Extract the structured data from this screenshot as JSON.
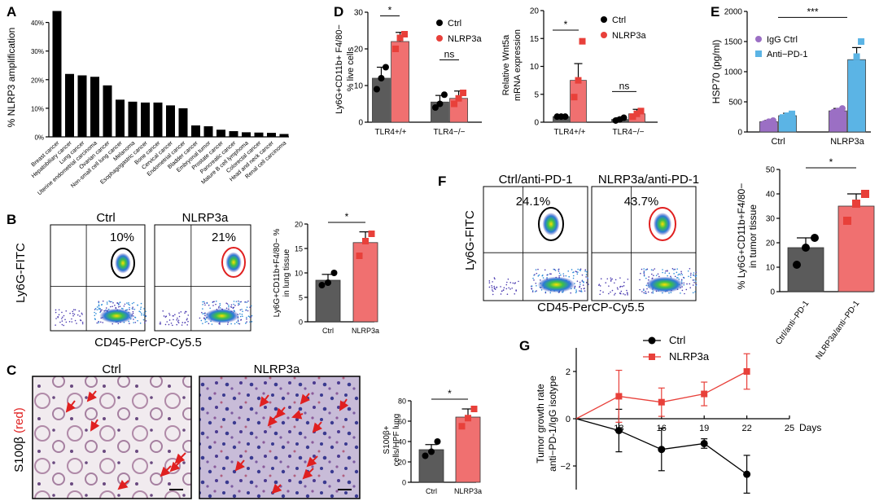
{
  "colors": {
    "ctrl_bar": "#5b5b5b",
    "nlrp3_bar": "#f07070",
    "nlrp3_pt": "#e8403a",
    "igg": "#9b6fc4",
    "antipd1": "#5bb4e5",
    "black": "#000000"
  },
  "panels": {
    "A": "A",
    "B": "B",
    "C": "C",
    "D": "D",
    "E": "E",
    "F": "F",
    "G": "G"
  },
  "chart_data": [
    {
      "id": "A",
      "type": "bar",
      "ylabel": "% NLRP3 amplification",
      "yticks": [
        "0%",
        "10%",
        "20%",
        "30%",
        "40%"
      ],
      "ylim": [
        0,
        45
      ],
      "categories": [
        "Breast cancer",
        "Hepatobiliary cancer",
        "Lung cancer",
        "Uterine endometrial carcinoma",
        "Ovarian cancer",
        "Non-small cell lung cancer",
        "Melanoma",
        "Esophagogastric cancer",
        "Bone cancer",
        "Cervical cancer",
        "Endometrial cancer",
        "Bladder cancer",
        "Embryonal tumor",
        "Prostate cancer",
        "Pancreatic cancer",
        "Mature B cell lymphoma",
        "Colorectal cancer",
        "Head and neck cancer",
        "Renal cell carcinoma"
      ],
      "values": [
        44,
        22,
        21.5,
        21,
        18,
        13,
        12.3,
        12,
        12,
        11,
        10,
        4,
        3.7,
        2.5,
        2,
        1.6,
        1.5,
        1.4,
        1
      ]
    },
    {
      "id": "B",
      "type": "bar",
      "ylabel": "Ly6G+CD11b+F4/80− % in lung tissue",
      "categories": [
        "Ctrl",
        "NLRP3a"
      ],
      "values": [
        8.5,
        16.2
      ],
      "errors": [
        1.2,
        2.2
      ],
      "points": [
        [
          7.5,
          8,
          10
        ],
        [
          13.5,
          16.5,
          18
        ]
      ],
      "ylim": [
        0,
        20
      ],
      "yticks": [
        "0",
        "5",
        "10",
        "15",
        "20"
      ],
      "significance": "*"
    },
    {
      "id": "C",
      "type": "bar",
      "ylabel": "S100β+ cells/HPF lung",
      "categories": [
        "Ctrl",
        "NLRP3a"
      ],
      "values": [
        32,
        64
      ],
      "errors": [
        5,
        8
      ],
      "points": [
        [
          26,
          30,
          40
        ],
        [
          55,
          63,
          72
        ]
      ],
      "ylim": [
        0,
        80
      ],
      "yticks": [
        "0",
        "20",
        "40",
        "60",
        "80"
      ],
      "significance": "*"
    },
    {
      "id": "D1",
      "type": "bar",
      "ylabel": "Ly6G+CD11b+F4/80− % live cells",
      "categories": [
        "TLR4+/+",
        "TLR4−/−"
      ],
      "series": [
        {
          "name": "Ctrl",
          "values": [
            12,
            5.5
          ],
          "errors": [
            3,
            1.8
          ],
          "points": [
            [
              9,
              12,
              15
            ],
            [
              4,
              5,
              7.5
            ]
          ]
        },
        {
          "name": "NLRP3a",
          "values": [
            22,
            6.5
          ],
          "errors": [
            2.5,
            2
          ],
          "points": [
            [
              20,
              23,
              24
            ],
            [
              5,
              6.5,
              8
            ]
          ]
        }
      ],
      "ylim": [
        0,
        30
      ],
      "yticks": [
        "0",
        "10",
        "20",
        "30"
      ],
      "significance": [
        "*",
        "ns"
      ]
    },
    {
      "id": "D2",
      "type": "bar",
      "ylabel": "Relative Wnt5a mRNA expression",
      "categories": [
        "TLR4+/+",
        "TLR4−/−"
      ],
      "series": [
        {
          "name": "Ctrl",
          "values": [
            1,
            0.5
          ],
          "errors": [
            0.1,
            0.3
          ],
          "points": [
            [
              1,
              1,
              1
            ],
            [
              0.3,
              0.5,
              0.8
            ]
          ]
        },
        {
          "name": "NLRP3a",
          "values": [
            7.5,
            1.5
          ],
          "errors": [
            3,
            0.8
          ],
          "points": [
            [
              4.5,
              7.5,
              14.5
            ],
            [
              1,
              1.5,
              2
            ]
          ]
        }
      ],
      "ylim": [
        0,
        20
      ],
      "yticks": [
        "0",
        "5",
        "10",
        "15",
        "20"
      ],
      "significance": [
        "*",
        "ns"
      ]
    },
    {
      "id": "E",
      "type": "bar",
      "ylabel": "HSP70 (pg/ml)",
      "categories": [
        "Ctrl",
        "NLRP3a"
      ],
      "series": [
        {
          "name": "IgG Ctrl",
          "values": [
            170,
            350
          ],
          "errors": [
            20,
            40
          ],
          "points": [
            [
              140,
              170,
              190
            ],
            [
              330,
              350,
              390
            ]
          ]
        },
        {
          "name": "Anti−PD-1",
          "values": [
            270,
            1200
          ],
          "errors": [
            40,
            200
          ],
          "points": [
            [
              240,
              270,
              300
            ],
            [
              1050,
              1250,
              1500
            ]
          ]
        }
      ],
      "ylim": [
        0,
        2000
      ],
      "yticks": [
        "0",
        "500",
        "1000",
        "1500",
        "2000"
      ],
      "significance": "***"
    },
    {
      "id": "F",
      "type": "bar",
      "ylabel": "% Ly6G+CD11b+F4/80− in tumor tissue",
      "categories": [
        "Ctrl/anti−PD-1",
        "NLRP3a/anti−PD-1"
      ],
      "values": [
        18,
        35
      ],
      "errors": [
        4,
        5
      ],
      "points": [
        [
          11,
          18,
          22
        ],
        [
          29,
          36,
          40
        ]
      ],
      "ylim": [
        0,
        50
      ],
      "yticks": [
        "0",
        "10",
        "20",
        "30",
        "40",
        "50"
      ],
      "significance": "*"
    },
    {
      "id": "G",
      "type": "line",
      "ylabel": "Tumor growth rate anti−PD-1/IgG isotype",
      "xlabel": "Days",
      "x": [
        10,
        13,
        16,
        19,
        22
      ],
      "xticks": [
        "13",
        "16",
        "19",
        "22",
        "25"
      ],
      "yticks": [
        "−2",
        "0",
        "2"
      ],
      "ylim": [
        -3,
        3
      ],
      "xlim": [
        10,
        25
      ],
      "series": [
        {
          "name": "Ctrl",
          "values": [
            0,
            -0.5,
            -1.3,
            -1.05,
            -2.35
          ],
          "errors": [
            0,
            0.9,
            0.9,
            0.2,
            0.8
          ]
        },
        {
          "name": "NLRP3a",
          "values": [
            0,
            0.95,
            0.7,
            1.05,
            2.0
          ],
          "errors": [
            0,
            1.1,
            0.6,
            0.5,
            0.75
          ]
        }
      ]
    }
  ],
  "flow": {
    "B": {
      "ctrl_title": "Ctrl",
      "nlrp3_title": "NLRP3a",
      "ctrl_pct": "10%",
      "nlrp3_pct": "21%",
      "ylabel": "Ly6G-FITC",
      "xlabel": "CD45-PerCP-Cy5.5"
    },
    "F": {
      "ctrl_title": "Ctrl/anti-PD-1",
      "nlrp3_title": "NLRP3a/anti-PD-1",
      "ctrl_pct": "24.1%",
      "nlrp3_pct": "43.7%",
      "ylabel": "Ly6G-FITC",
      "xlabel": "CD45-PerCP-Cy5.5"
    }
  },
  "histology": {
    "ctrl_title": "Ctrl",
    "nlrp3_title": "NLRP3a",
    "stain_label": "S100β ",
    "stain_color_label": "(red)"
  },
  "legends": {
    "ctrl": "Ctrl",
    "nlrp3": "NLRP3a",
    "igg": "IgG Ctrl",
    "antipd1": "Anti−PD-1"
  }
}
